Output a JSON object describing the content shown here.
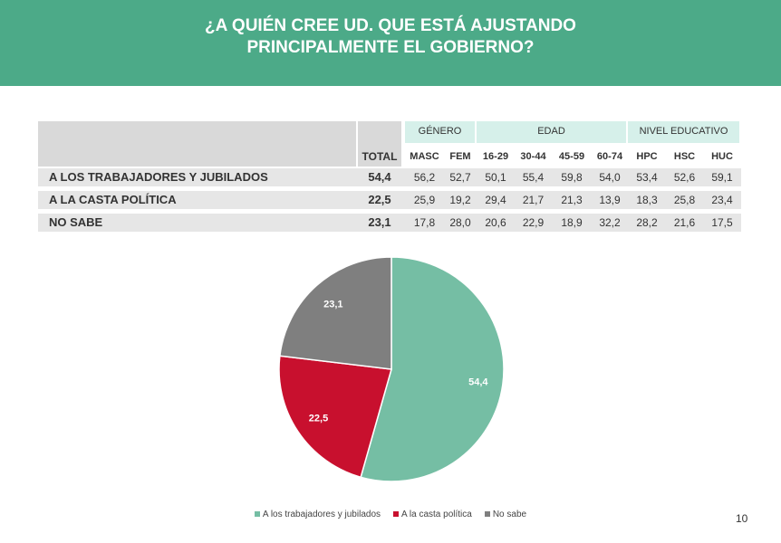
{
  "title": "¿A QUIÉN CREE UD. QUE ESTÁ AJUSTANDO\nPRINCIPALMENTE EL GOBIERNO?",
  "table": {
    "groups": [
      "GÉNERO",
      "EDAD",
      "NIVEL EDUCATIVO"
    ],
    "total_label": "TOTAL",
    "columns": [
      "MASC",
      "FEM",
      "16-29",
      "30-44",
      "45-59",
      "60-74",
      "HPC",
      "HSC",
      "HUC"
    ],
    "rows": [
      {
        "label": "A LOS TRABAJADORES Y JUBILADOS",
        "total": "54,4",
        "values": [
          "56,2",
          "52,7",
          "50,1",
          "55,4",
          "59,8",
          "54,0",
          "53,4",
          "52,6",
          "59,1"
        ]
      },
      {
        "label": "A LA CASTA POLÍTICA",
        "total": "22,5",
        "values": [
          "25,9",
          "19,2",
          "29,4",
          "21,7",
          "21,3",
          "13,9",
          "18,3",
          "25,8",
          "23,4"
        ]
      },
      {
        "label": "NO SABE",
        "total": "23,1",
        "values": [
          "17,8",
          "28,0",
          "20,6",
          "22,9",
          "18,9",
          "32,2",
          "28,2",
          "21,6",
          "17,5"
        ]
      }
    ]
  },
  "chart_data": {
    "type": "pie",
    "categories": [
      "A los trabajadores y jubilados",
      "A la casta política",
      "No sabe"
    ],
    "values": [
      54.4,
      22.5,
      23.1
    ],
    "data_labels": [
      "54,4",
      "22,5",
      "23,1"
    ],
    "colors": [
      "#75bea4",
      "#c8102e",
      "#7f7f7f"
    ],
    "legend_position": "bottom"
  },
  "page_number": "10"
}
